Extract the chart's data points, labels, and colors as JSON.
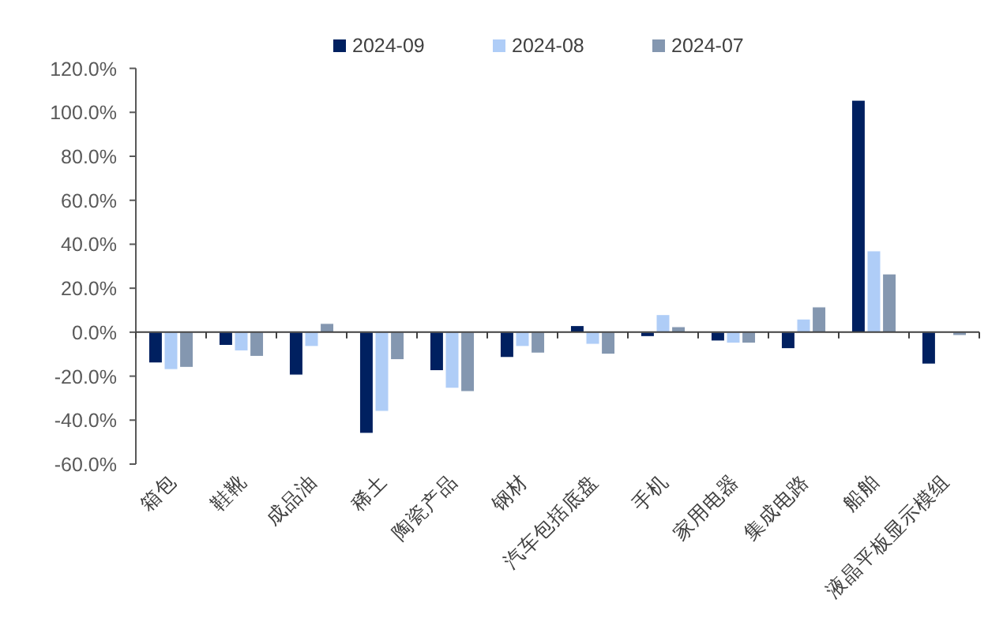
{
  "chart_data": {
    "type": "bar",
    "categories": [
      "箱包",
      "鞋靴",
      "成品油",
      "稀土",
      "陶瓷产品",
      "钢材",
      "汽车包括底盘",
      "手机",
      "家用电器",
      "集成电路",
      "船舶",
      "液晶平板显示模组"
    ],
    "series": [
      {
        "name": "2024-09",
        "color": "#002060",
        "values": [
          -14,
          -6,
          -19.5,
          -46,
          -17.5,
          -11.5,
          3,
          -2,
          -4,
          -7.5,
          105.5,
          -14.5
        ]
      },
      {
        "name": "2024-08",
        "color": "#afcdf7",
        "values": [
          -17,
          -8.5,
          -6.5,
          -36,
          -25.5,
          -6.5,
          -5.5,
          8,
          -5,
          6,
          37,
          null
        ]
      },
      {
        "name": "2024-07",
        "color": "#8497b0",
        "values": [
          -16,
          -11,
          4,
          -12.5,
          -27,
          -9.5,
          -10,
          2.5,
          -5,
          11.5,
          26.5,
          -1.5
        ]
      }
    ],
    "ylim": [
      -60,
      120
    ],
    "yticks": [
      {
        "value": -60,
        "label": "-60.0%"
      },
      {
        "value": -40,
        "label": "-40.0%"
      },
      {
        "value": -20,
        "label": "-20.0%"
      },
      {
        "value": 0,
        "label": "0.0%"
      },
      {
        "value": 20,
        "label": "20.0%"
      },
      {
        "value": 40,
        "label": "40.0%"
      },
      {
        "value": 60,
        "label": "60.0%"
      },
      {
        "value": 80,
        "label": "80.0%"
      },
      {
        "value": 100,
        "label": "100.0%"
      },
      {
        "value": 120,
        "label": "120.0%"
      }
    ],
    "legend": "top"
  }
}
